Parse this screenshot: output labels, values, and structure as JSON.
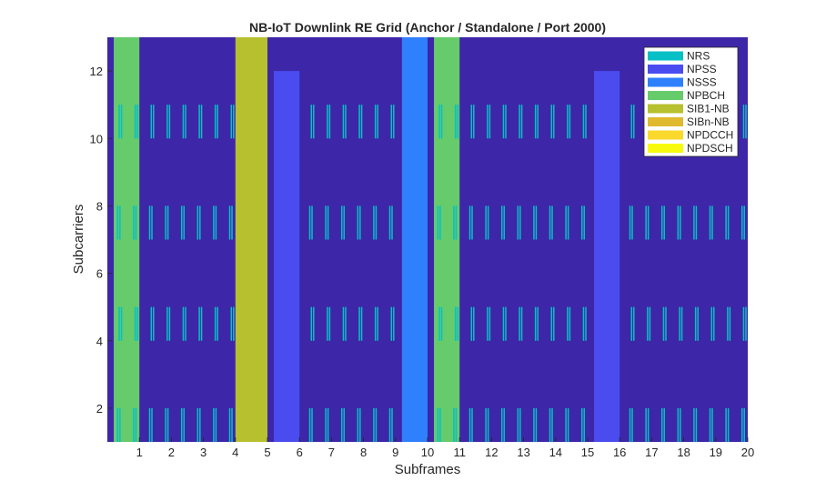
{
  "chart_data": {
    "type": "heatmap",
    "title": "NB-IoT Downlink RE Grid (Anchor / Standalone / Port 2000)",
    "xlabel": "Subframes",
    "ylabel": "Subcarriers",
    "xlim": [
      0,
      20
    ],
    "ylim": [
      1,
      13
    ],
    "x_ticks": [
      "1",
      "2",
      "3",
      "4",
      "5",
      "6",
      "7",
      "8",
      "9",
      "10",
      "11",
      "12",
      "13",
      "14",
      "15",
      "16",
      "17",
      "18",
      "19",
      "20"
    ],
    "y_ticks": [
      "2",
      "4",
      "6",
      "8",
      "10",
      "12"
    ],
    "grid": false,
    "legend_position": "top-right",
    "background_color": "#3e26a8",
    "legend": [
      {
        "name": "NRS",
        "color": "#06c0c6"
      },
      {
        "name": "NPSS",
        "color": "#4a4cf0"
      },
      {
        "name": "NSSS",
        "color": "#2f80fd"
      },
      {
        "name": "NPBCH",
        "color": "#65cb6b"
      },
      {
        "name": "SIB1-NB",
        "color": "#b7c02e"
      },
      {
        "name": "SIBn-NB",
        "color": "#dfba2e"
      },
      {
        "name": "NPDCCH",
        "color": "#fbd92c"
      },
      {
        "name": "NPDSCH",
        "color": "#f8fa0d"
      }
    ],
    "regions": [
      {
        "channel": "NPBCH",
        "subframe": 0,
        "x_range": [
          0.2,
          1.0
        ],
        "subcarrier_range": [
          1,
          13
        ]
      },
      {
        "channel": "SIB1-NB",
        "subframe": 4,
        "x_range": [
          4.0,
          5.0
        ],
        "subcarrier_range": [
          1,
          13
        ]
      },
      {
        "channel": "NPSS",
        "subframe": 5,
        "x_range": [
          5.2,
          6.0
        ],
        "subcarrier_range": [
          1,
          12
        ]
      },
      {
        "channel": "NSSS",
        "subframe": 9,
        "x_range": [
          9.2,
          10.0
        ],
        "subcarrier_range": [
          1,
          13
        ]
      },
      {
        "channel": "NPBCH",
        "subframe": 10,
        "x_range": [
          10.2,
          11.0
        ],
        "subcarrier_range": [
          1,
          13
        ]
      },
      {
        "channel": "NPSS",
        "subframe": 15,
        "x_range": [
          15.2,
          16.0
        ],
        "subcarrier_range": [
          1,
          12
        ]
      }
    ],
    "nrs_subcarrier_bands": [
      [
        1,
        2
      ],
      [
        4,
        5
      ],
      [
        7,
        8
      ],
      [
        10,
        11
      ]
    ],
    "nrs_symbols": [
      5,
      6,
      12,
      13
    ],
    "symbols_per_subframe": 14
  }
}
